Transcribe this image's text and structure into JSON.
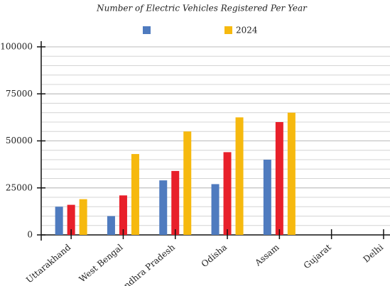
{
  "chart_data": {
    "type": "bar",
    "title": "Number of Electric Vehicles Registered Per Year",
    "categories": [
      "Uttarakhand",
      "West Bengal",
      "Andhra Pradesh",
      "Odisha",
      "Assam",
      "Gujarat",
      "Delhi"
    ],
    "series": [
      {
        "name": null,
        "color": "#4f7bbf",
        "in_legend": true,
        "values": [
          15000,
          10000,
          29000,
          27000,
          40000,
          null,
          null
        ]
      },
      {
        "name": null,
        "color": "#e8202a",
        "in_legend": false,
        "values": [
          16000,
          21000,
          34000,
          44000,
          60000,
          null,
          null
        ]
      },
      {
        "name": "2024",
        "color": "#f6b90f",
        "in_legend": true,
        "values": [
          19000,
          43000,
          55000,
          62500,
          65000,
          null,
          null
        ]
      }
    ],
    "ylim": [
      0,
      100000
    ],
    "yticks": [
      0,
      25000,
      50000,
      75000,
      100000
    ],
    "grid": true,
    "grid_step": 5000
  }
}
